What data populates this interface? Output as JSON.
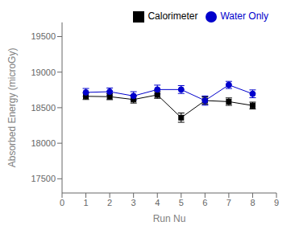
{
  "chart_data": {
    "type": "line",
    "xlabel": "Run Nu",
    "ylabel": "Absorbed Energy (microGy)",
    "x": [
      1,
      2,
      3,
      4,
      5,
      6,
      7,
      8
    ],
    "series": [
      {
        "name": "Calorimeter",
        "color": "#000000",
        "marker": "square",
        "values": [
          18660,
          18655,
          18615,
          18680,
          18360,
          18600,
          18585,
          18530
        ],
        "yerr": [
          45,
          42,
          50,
          48,
          65,
          52,
          52,
          48
        ]
      },
      {
        "name": "Water Only",
        "color": "#0000cc",
        "marker": "circle",
        "values": [
          18715,
          18725,
          18665,
          18755,
          18755,
          18600,
          18820,
          18695
        ],
        "yerr": [
          55,
          52,
          60,
          62,
          55,
          65,
          50,
          55
        ]
      }
    ],
    "xlim": [
      0,
      9
    ],
    "xticks": [
      0,
      1,
      2,
      3,
      4,
      5,
      6,
      7,
      8,
      9
    ],
    "ylim": [
      17300,
      19700
    ],
    "yticks": [
      17500,
      18000,
      18500,
      19000,
      19500
    ],
    "grid": false,
    "legend": "upper right"
  }
}
